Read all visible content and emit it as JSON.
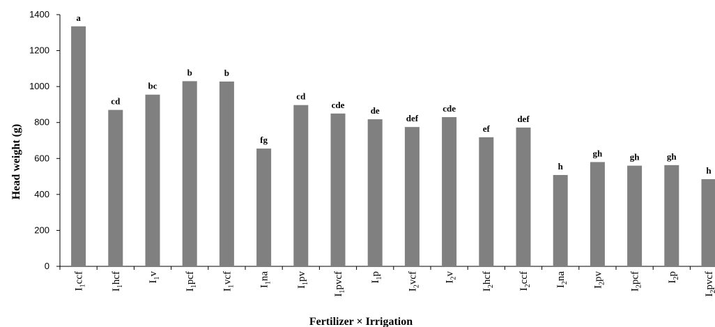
{
  "chart_data": {
    "type": "bar",
    "title": "",
    "xlabel": "Fertilizer × Irrigation",
    "ylabel": "Head weight (g)",
    "ylim": [
      0,
      1400
    ],
    "yticks": [
      0,
      200,
      400,
      600,
      800,
      1000,
      1200,
      1400
    ],
    "grid": false,
    "bar_color": "#808080",
    "categories": [
      {
        "label": "I1ccf",
        "main": "I",
        "sub": "1",
        "rest": "ccf"
      },
      {
        "label": "I1hcf",
        "main": "I",
        "sub": "1",
        "rest": "hcf"
      },
      {
        "label": "I1v",
        "main": "I",
        "sub": "1",
        "rest": "v"
      },
      {
        "label": "I1pcf",
        "main": "I",
        "sub": "1",
        "rest": "pcf"
      },
      {
        "label": "I1vcf",
        "main": "I",
        "sub": "1",
        "rest": "vcf"
      },
      {
        "label": "I1na",
        "main": "I",
        "sub": "1",
        "rest": "na"
      },
      {
        "label": "I1pv",
        "main": "I",
        "sub": "1",
        "rest": "pv"
      },
      {
        "label": "I1pvcf",
        "main": "I",
        "sub": "1",
        "rest": "pvcf"
      },
      {
        "label": "I1p",
        "main": "I",
        "sub": "1",
        "rest": "p"
      },
      {
        "label": "I2vcf",
        "main": "I",
        "sub": "2",
        "rest": "vcf"
      },
      {
        "label": "I2v",
        "main": "I",
        "sub": "2",
        "rest": "v"
      },
      {
        "label": "I2hcf",
        "main": "I",
        "sub": "2",
        "rest": "hcf"
      },
      {
        "label": "I2ccf",
        "main": "I",
        "sub": "2",
        "rest": "ccf"
      },
      {
        "label": "I2na",
        "main": "I",
        "sub": "2",
        "rest": "na"
      },
      {
        "label": "I2pv",
        "main": "I",
        "sub": "2",
        "rest": "pv"
      },
      {
        "label": "I2pcf",
        "main": "I",
        "sub": "2",
        "rest": "pcf"
      },
      {
        "label": "I2p",
        "main": "I",
        "sub": "2",
        "rest": "p"
      },
      {
        "label": "I2pvcf",
        "main": "I",
        "sub": "2",
        "rest": "pvcf"
      }
    ],
    "values": [
      1335,
      870,
      955,
      1030,
      1028,
      655,
      897,
      850,
      818,
      775,
      830,
      718,
      772,
      508,
      580,
      560,
      563,
      485
    ],
    "significance_letters": [
      "a",
      "cd",
      "bc",
      "b",
      "b",
      "fg",
      "cd",
      "cde",
      "de",
      "def",
      "cde",
      "ef",
      "def",
      "h",
      "gh",
      "gh",
      "gh",
      "h"
    ]
  }
}
